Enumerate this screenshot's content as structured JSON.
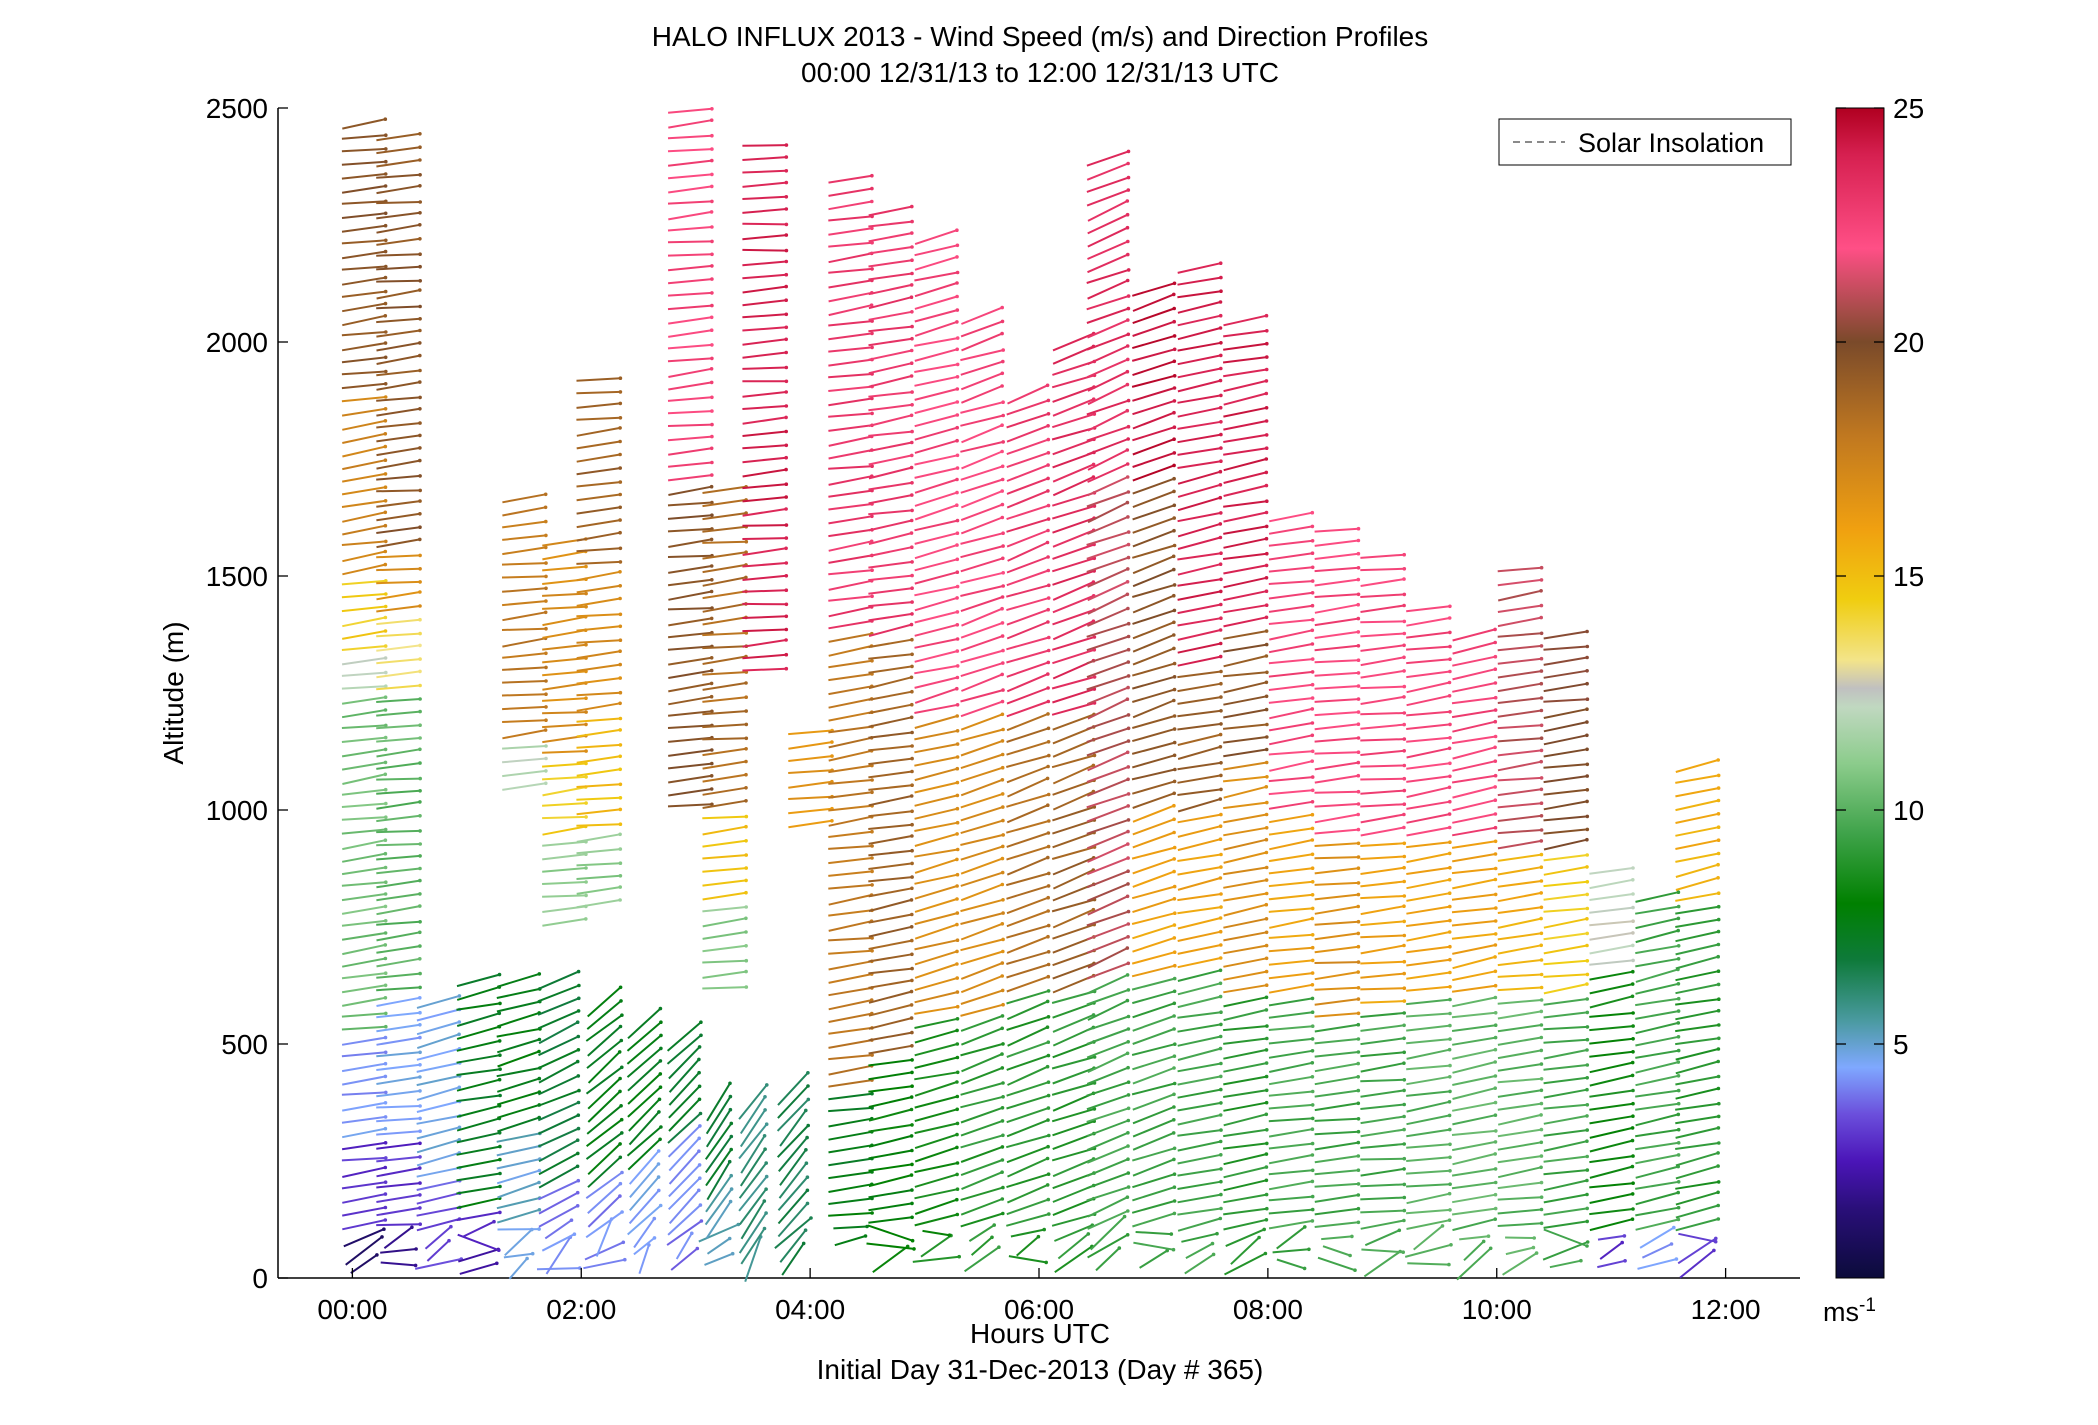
{
  "chart_data": {
    "type": "scatter",
    "title": "HALO INFLUX 2013 - Wind Speed (m/s) and Direction Profiles",
    "subtitle": "00:00 12/31/13 to 12:00 12/31/13  UTC",
    "xlabel": "Hours UTC",
    "xlabel2": "Initial Day 31-Dec-2013 (Day # 365)",
    "ylabel": "Altitude (m)",
    "xlim": [
      -0.65,
      12.65
    ],
    "ylim": [
      0,
      2500
    ],
    "x_ticks": [
      {
        "value": 0,
        "label": "00:00"
      },
      {
        "value": 2,
        "label": "02:00"
      },
      {
        "value": 4,
        "label": "04:00"
      },
      {
        "value": 6,
        "label": "06:00"
      },
      {
        "value": 8,
        "label": "08:00"
      },
      {
        "value": 10,
        "label": "10:00"
      },
      {
        "value": 12,
        "label": "12:00"
      }
    ],
    "y_ticks": [
      {
        "value": 0,
        "label": "0"
      },
      {
        "value": 500,
        "label": "500"
      },
      {
        "value": 1000,
        "label": "1000"
      },
      {
        "value": 1500,
        "label": "1500"
      },
      {
        "value": 2000,
        "label": "2000"
      },
      {
        "value": 2500,
        "label": "2500"
      }
    ],
    "legend": {
      "position": "top-right",
      "entries": [
        "Solar Insolation"
      ],
      "entry_color": "#8a8a8a"
    },
    "colorbar": {
      "range": [
        0,
        25
      ],
      "ticks": [
        {
          "value": 5,
          "label": "5"
        },
        {
          "value": 10,
          "label": "10"
        },
        {
          "value": 15,
          "label": "15"
        },
        {
          "value": 20,
          "label": "20"
        },
        {
          "value": 25,
          "label": "25"
        }
      ],
      "unit": "ms",
      "unit_exp": "-1",
      "stops": [
        {
          "v": 0,
          "c": "#0b0b3a"
        },
        {
          "v": 1.5,
          "c": "#2a0f7a"
        },
        {
          "v": 2.5,
          "c": "#4b15b8"
        },
        {
          "v": 3.5,
          "c": "#6b4fdc"
        },
        {
          "v": 4.5,
          "c": "#7fa8ff"
        },
        {
          "v": 5.5,
          "c": "#4a9aa0"
        },
        {
          "v": 6.8,
          "c": "#0e7a3a"
        },
        {
          "v": 8,
          "c": "#008000"
        },
        {
          "v": 9.5,
          "c": "#3fa34a"
        },
        {
          "v": 11,
          "c": "#8ccc8c"
        },
        {
          "v": 12.2,
          "c": "#c0d8c0"
        },
        {
          "v": 12.6,
          "c": "#c0c0c0"
        },
        {
          "v": 13.2,
          "c": "#f3e48a"
        },
        {
          "v": 14.5,
          "c": "#f0cd10"
        },
        {
          "v": 16,
          "c": "#f0a010"
        },
        {
          "v": 18,
          "c": "#c07820"
        },
        {
          "v": 20,
          "c": "#7a4a2a"
        },
        {
          "v": 22,
          "c": "#ff4f86"
        },
        {
          "v": 24,
          "c": "#d62050"
        },
        {
          "v": 25,
          "c": "#b00020"
        }
      ]
    },
    "profiles": [
      {
        "t": 0.1,
        "zmin": 30,
        "zmax": 2480,
        "layers": [
          [
            0,
            110,
            1
          ],
          [
            110,
            300,
            3
          ],
          [
            300,
            510,
            4.3
          ],
          [
            510,
            1010,
            10.5
          ],
          [
            1010,
            1250,
            10.5
          ],
          [
            1250,
            1330,
            12.3
          ],
          [
            1330,
            1500,
            14.5
          ],
          [
            1500,
            1900,
            17.5
          ],
          [
            1900,
            2480,
            19.5
          ]
        ],
        "ang": -8
      },
      {
        "t": 0.4,
        "zmin": 30,
        "zmax": 2450,
        "layers": [
          [
            0,
            110,
            1.5
          ],
          [
            110,
            300,
            3
          ],
          [
            300,
            590,
            4.6
          ],
          [
            590,
            1120,
            10
          ],
          [
            1120,
            1250,
            10.2
          ],
          [
            1250,
            1420,
            13.5
          ],
          [
            1420,
            1560,
            17
          ],
          [
            1560,
            2440,
            19.5
          ]
        ],
        "ang": -6
      },
      {
        "t": 0.75,
        "zmin": 30,
        "zmax": 600,
        "layers": [
          [
            0,
            200,
            3.5
          ],
          [
            200,
            600,
            4.8
          ]
        ],
        "ang": -14
      },
      {
        "t": 1.1,
        "zmin": 20,
        "zmax": 640,
        "layers": [
          [
            0,
            150,
            2.5
          ],
          [
            150,
            640,
            7.5
          ]
        ],
        "ang": -12
      },
      {
        "t": 1.45,
        "zmin": 20,
        "zmax": 640,
        "layers": [
          [
            0,
            300,
            5
          ],
          [
            300,
            640,
            7.5
          ]
        ],
        "ang": -15
      },
      {
        "t": 1.8,
        "zmin": 20,
        "zmax": 640,
        "layers": [
          [
            0,
            200,
            4
          ],
          [
            200,
            640,
            7
          ]
        ],
        "ang": -25
      },
      {
        "t": 2.2,
        "zmin": 30,
        "zmax": 590,
        "layers": [
          [
            0,
            200,
            4
          ],
          [
            200,
            590,
            7.5
          ]
        ],
        "ang": -40
      },
      {
        "t": 2.55,
        "zmin": 40,
        "zmax": 560,
        "layers": [
          [
            0,
            250,
            4.5
          ],
          [
            250,
            560,
            7.5
          ]
        ],
        "ang": -45
      },
      {
        "t": 2.9,
        "zmin": 40,
        "zmax": 520,
        "layers": [
          [
            0,
            300,
            4
          ],
          [
            300,
            520,
            7
          ]
        ],
        "ang": -45
      },
      {
        "t": 3.2,
        "zmin": 40,
        "zmax": 400,
        "layers": [
          [
            0,
            200,
            5.5
          ],
          [
            200,
            400,
            7
          ]
        ],
        "ang": -55
      },
      {
        "t": 3.5,
        "zmin": 40,
        "zmax": 380,
        "layers": [
          [
            0,
            380,
            6
          ]
        ],
        "ang": -55
      },
      {
        "t": 3.85,
        "zmin": 40,
        "zmax": 420,
        "layers": [
          [
            0,
            420,
            6.5
          ]
        ],
        "ang": -50
      },
      {
        "t": 1.5,
        "zmin": 1050,
        "zmax": 1670,
        "layers": [
          [
            1050,
            1150,
            12
          ],
          [
            1150,
            1670,
            18
          ]
        ],
        "ang": -6
      },
      {
        "t": 1.85,
        "zmin": 760,
        "zmax": 1580,
        "layers": [
          [
            760,
            950,
            11
          ],
          [
            950,
            1100,
            14.5
          ],
          [
            1100,
            1580,
            17
          ]
        ],
        "ang": -6
      },
      {
        "t": 2.15,
        "zmin": 800,
        "zmax": 1930,
        "layers": [
          [
            800,
            950,
            11
          ],
          [
            950,
            1200,
            15
          ],
          [
            1200,
            1500,
            17
          ],
          [
            1500,
            1930,
            19
          ]
        ],
        "ang": -6
      },
      {
        "t": 2.95,
        "zmin": 1010,
        "zmax": 2500,
        "layers": [
          [
            1010,
            1700,
            19.5
          ],
          [
            1700,
            2500,
            22.5
          ]
        ],
        "ang": -6
      },
      {
        "t": 3.25,
        "zmin": 620,
        "zmax": 1700,
        "layers": [
          [
            620,
            800,
            11
          ],
          [
            800,
            1000,
            15
          ],
          [
            1000,
            1700,
            18.5
          ]
        ],
        "ang": -6
      },
      {
        "t": 3.6,
        "zmin": 1300,
        "zmax": 2420,
        "layers": [
          [
            1300,
            2420,
            24
          ]
        ],
        "ang": -4
      },
      {
        "t": 4.0,
        "zmin": 970,
        "zmax": 1180,
        "layers": [
          [
            970,
            1180,
            16.5
          ]
        ],
        "ang": -5
      },
      {
        "t": 4.35,
        "zmin": 80,
        "zmax": 2370,
        "layers": [
          [
            0,
            400,
            7.5
          ],
          [
            400,
            1370,
            18
          ],
          [
            1370,
            2370,
            23
          ]
        ],
        "ang": -8
      },
      {
        "t": 4.7,
        "zmin": 40,
        "zmax": 2300,
        "layers": [
          [
            0,
            480,
            8
          ],
          [
            480,
            1370,
            19
          ],
          [
            1370,
            2300,
            23
          ]
        ],
        "ang": -10
      },
      {
        "t": 5.1,
        "zmin": 40,
        "zmax": 2250,
        "layers": [
          [
            0,
            560,
            8.5
          ],
          [
            560,
            1200,
            17
          ],
          [
            1200,
            2250,
            22.5
          ]
        ],
        "ang": -14
      },
      {
        "t": 5.5,
        "zmin": 40,
        "zmax": 2060,
        "layers": [
          [
            0,
            560,
            9
          ],
          [
            560,
            1200,
            17
          ],
          [
            1200,
            2060,
            22.5
          ]
        ],
        "ang": -18
      },
      {
        "t": 5.9,
        "zmin": 40,
        "zmax": 1900,
        "layers": [
          [
            0,
            600,
            9
          ],
          [
            600,
            1200,
            18.5
          ],
          [
            1200,
            1900,
            23
          ]
        ],
        "ang": -20
      },
      {
        "t": 6.3,
        "zmin": 40,
        "zmax": 2000,
        "layers": [
          [
            0,
            620,
            9
          ],
          [
            620,
            1200,
            19
          ],
          [
            1200,
            2000,
            23.5
          ]
        ],
        "ang": -20
      },
      {
        "t": 6.6,
        "zmin": 40,
        "zmax": 2410,
        "layers": [
          [
            0,
            650,
            9.5
          ],
          [
            650,
            1700,
            21
          ],
          [
            1700,
            2410,
            23.5
          ]
        ],
        "ang": -22
      },
      {
        "t": 7.0,
        "zmin": 40,
        "zmax": 2130,
        "layers": [
          [
            0,
            650,
            9.5
          ],
          [
            650,
            1000,
            16
          ],
          [
            1000,
            1700,
            19.5
          ],
          [
            1700,
            2130,
            24.5
          ]
        ],
        "ang": -18
      },
      {
        "t": 7.4,
        "zmin": 30,
        "zmax": 2180,
        "layers": [
          [
            0,
            650,
            9.5
          ],
          [
            650,
            1000,
            16
          ],
          [
            1000,
            1300,
            19
          ],
          [
            1300,
            2180,
            24
          ]
        ],
        "ang": -12
      },
      {
        "t": 7.8,
        "zmin": 30,
        "zmax": 2060,
        "layers": [
          [
            0,
            600,
            9
          ],
          [
            600,
            1100,
            17
          ],
          [
            1100,
            1400,
            19.5
          ],
          [
            1400,
            2060,
            24
          ]
        ],
        "ang": -10
      },
      {
        "t": 8.2,
        "zmin": 30,
        "zmax": 1650,
        "layers": [
          [
            0,
            600,
            9.5
          ],
          [
            600,
            1000,
            16
          ],
          [
            1000,
            1650,
            22.5
          ]
        ],
        "ang": -8
      },
      {
        "t": 8.6,
        "zmin": 30,
        "zmax": 1610,
        "layers": [
          [
            0,
            550,
            9.5
          ],
          [
            550,
            950,
            17
          ],
          [
            950,
            1610,
            22.5
          ]
        ],
        "ang": -6
      },
      {
        "t": 9.0,
        "zmin": 30,
        "zmax": 1560,
        "layers": [
          [
            0,
            580,
            9.5
          ],
          [
            580,
            950,
            16
          ],
          [
            950,
            1560,
            22.5
          ]
        ],
        "ang": -6
      },
      {
        "t": 9.4,
        "zmin": 30,
        "zmax": 1450,
        "layers": [
          [
            0,
            600,
            10
          ],
          [
            600,
            950,
            16
          ],
          [
            950,
            1450,
            22.5
          ]
        ],
        "ang": -8
      },
      {
        "t": 9.8,
        "zmin": 30,
        "zmax": 1400,
        "layers": [
          [
            0,
            600,
            10
          ],
          [
            600,
            950,
            16
          ],
          [
            950,
            1400,
            22.5
          ]
        ],
        "ang": -10
      },
      {
        "t": 10.2,
        "zmin": 30,
        "zmax": 1540,
        "layers": [
          [
            0,
            600,
            10
          ],
          [
            600,
            900,
            15.5
          ],
          [
            900,
            1540,
            21
          ]
        ],
        "ang": -8
      },
      {
        "t": 10.6,
        "zmin": 30,
        "zmax": 1380,
        "layers": [
          [
            0,
            600,
            9.5
          ],
          [
            600,
            900,
            14.5
          ],
          [
            900,
            1380,
            20
          ]
        ],
        "ang": -8
      },
      {
        "t": 11.0,
        "zmin": 30,
        "zmax": 880,
        "layers": [
          [
            0,
            100,
            3
          ],
          [
            100,
            650,
            8.5
          ],
          [
            650,
            880,
            12.5
          ]
        ],
        "ang": -10
      },
      {
        "t": 11.4,
        "zmin": 30,
        "zmax": 820,
        "layers": [
          [
            0,
            100,
            4.5
          ],
          [
            100,
            820,
            9.5
          ]
        ],
        "ang": -12
      },
      {
        "t": 11.75,
        "zmin": 30,
        "zmax": 1110,
        "layers": [
          [
            0,
            100,
            3
          ],
          [
            100,
            800,
            9
          ],
          [
            800,
            1110,
            15.5
          ]
        ],
        "ang": -12
      }
    ]
  }
}
